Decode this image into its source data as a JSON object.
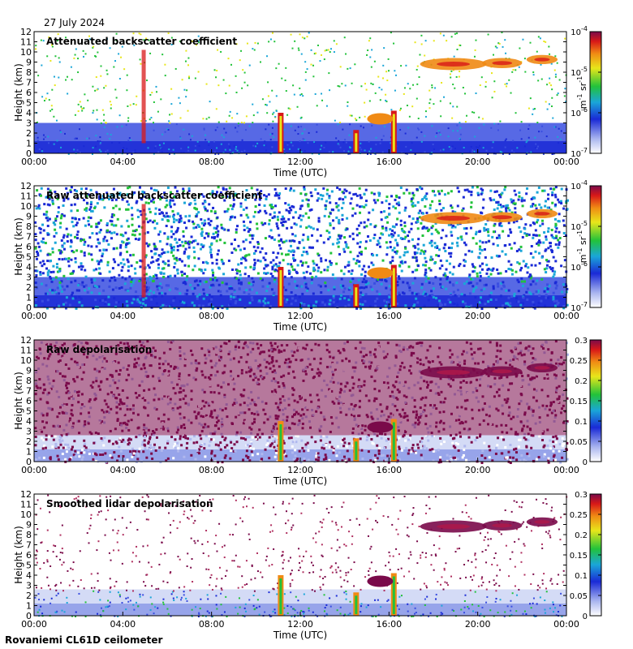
{
  "header": {
    "date": "27 July 2024"
  },
  "footer": {
    "site": "Rovaniemi CL61D ceilometer"
  },
  "chart_data": [
    {
      "type": "heatmap",
      "title": "Attenuated backscatter coefficient",
      "xlabel": "Time (UTC)",
      "ylabel": "Height (km)",
      "x_ticks": [
        "00:00",
        "04:00",
        "08:00",
        "12:00",
        "16:00",
        "20:00",
        "00:00"
      ],
      "y_ticks": [
        "0",
        "1",
        "2",
        "3",
        "4",
        "5",
        "6",
        "7",
        "8",
        "9",
        "10",
        "11",
        "12"
      ],
      "ylim": [
        0,
        12
      ],
      "colorbar": {
        "scale": "log",
        "range": [
          1e-07,
          0.0001
        ],
        "units": "m-1 sr-1",
        "tick_labels": [
          "10-4",
          "10-5",
          "10-6",
          "10-7"
        ]
      },
      "grid": false
    },
    {
      "type": "heatmap",
      "title": "Raw attenuated backscatter coefficient",
      "xlabel": "Time (UTC)",
      "ylabel": "Height (km)",
      "x_ticks": [
        "00:00",
        "04:00",
        "08:00",
        "12:00",
        "16:00",
        "20:00",
        "00:00"
      ],
      "y_ticks": [
        "0",
        "1",
        "2",
        "3",
        "4",
        "5",
        "6",
        "7",
        "8",
        "9",
        "10",
        "11",
        "12"
      ],
      "ylim": [
        0,
        12
      ],
      "colorbar": {
        "scale": "log",
        "range": [
          1e-07,
          0.0001
        ],
        "units": "m-1 sr-1",
        "tick_labels": [
          "10-4",
          "10-5",
          "10-6",
          "10-7"
        ]
      },
      "grid": false
    },
    {
      "type": "heatmap",
      "title": "Raw depolarisation",
      "xlabel": "Time (UTC)",
      "ylabel": "Height (km)",
      "x_ticks": [
        "00:00",
        "04:00",
        "08:00",
        "12:00",
        "16:00",
        "20:00",
        "00:00"
      ],
      "y_ticks": [
        "0",
        "1",
        "2",
        "3",
        "4",
        "5",
        "6",
        "7",
        "8",
        "9",
        "10",
        "11",
        "12"
      ],
      "ylim": [
        0,
        12
      ],
      "colorbar": {
        "scale": "linear",
        "range": [
          0,
          0.3
        ],
        "tick_labels": [
          "0.3",
          "0.25",
          "0.2",
          "0.15",
          "0.1",
          "0.05",
          "0"
        ]
      },
      "grid": false
    },
    {
      "type": "heatmap",
      "title": "Smoothed lidar depolarisation",
      "xlabel": "Time (UTC)",
      "ylabel": "Height (km)",
      "x_ticks": [
        "00:00",
        "04:00",
        "08:00",
        "12:00",
        "16:00",
        "20:00",
        "00:00"
      ],
      "y_ticks": [
        "0",
        "1",
        "2",
        "3",
        "4",
        "5",
        "6",
        "7",
        "8",
        "9",
        "10",
        "11",
        "12"
      ],
      "ylim": [
        0,
        12
      ],
      "colorbar": {
        "scale": "linear",
        "range": [
          0,
          0.3
        ],
        "tick_labels": [
          "0.3",
          "0.25",
          "0.2",
          "0.15",
          "0.1",
          "0.05",
          "0"
        ]
      },
      "grid": false
    }
  ]
}
